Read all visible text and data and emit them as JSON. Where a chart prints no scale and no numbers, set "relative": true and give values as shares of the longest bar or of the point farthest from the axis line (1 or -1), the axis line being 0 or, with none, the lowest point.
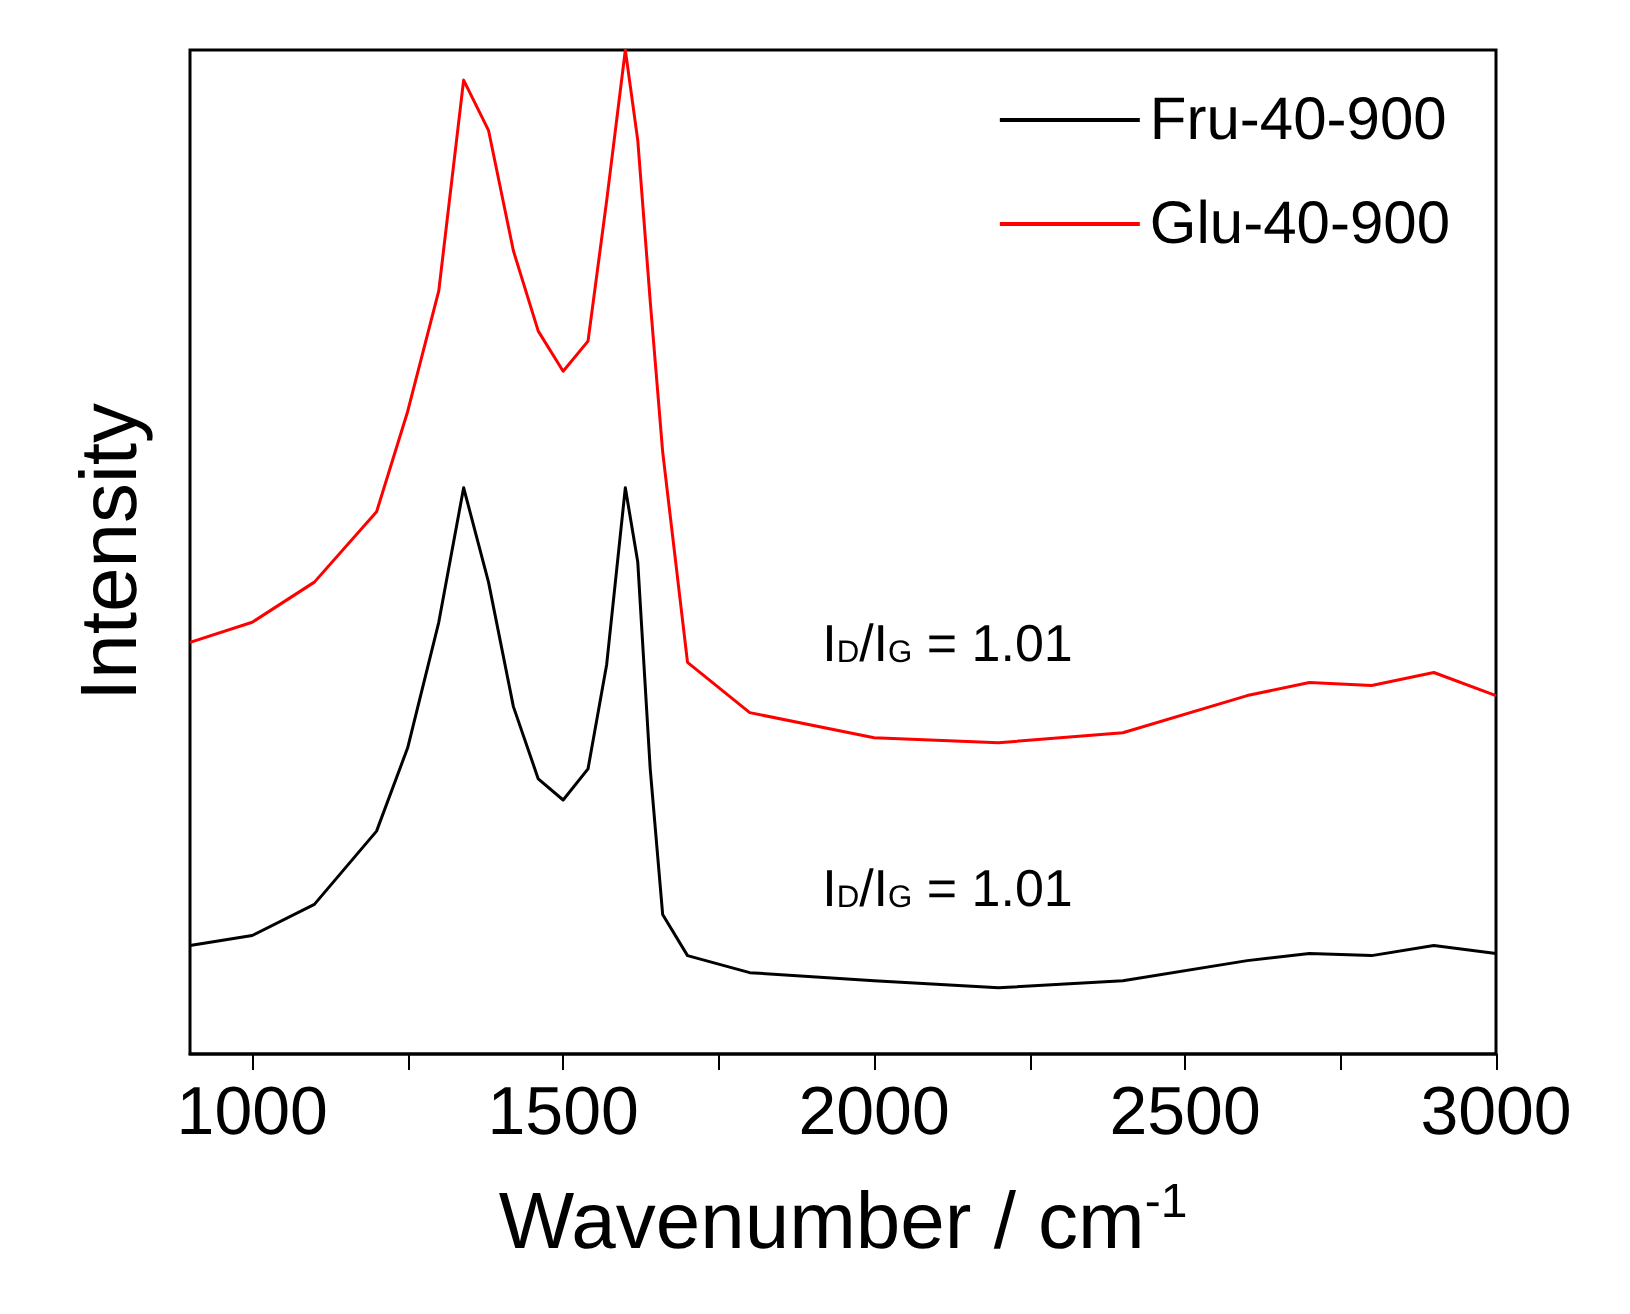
{
  "chart_data": {
    "type": "line",
    "relative": true,
    "xlabel": "Wavenumber / cm$^{-1}$",
    "ylabel": "Intensity",
    "xlim": [
      900,
      3000
    ],
    "xticks": [
      1000,
      {
        "value": 1250,
        "label": null
      },
      1500,
      {
        "value": 1750,
        "label": null
      },
      2000,
      {
        "value": 2250,
        "label": null
      },
      2500,
      {
        "value": 2750,
        "label": null
      },
      3000
    ],
    "x": [
      900,
      1000,
      1100,
      1200,
      1250,
      1300,
      1340,
      1380,
      1420,
      1460,
      1500,
      1540,
      1570,
      1600,
      1620,
      1640,
      1660,
      1700,
      1800,
      2000,
      2200,
      2400,
      2600,
      2700,
      2800,
      2900,
      3000
    ],
    "series": [
      {
        "name": "Fru-40-900",
        "color": "#000000",
        "values": [
          0.108,
          0.118,
          0.149,
          0.222,
          0.305,
          0.43,
          0.564,
          0.47,
          0.346,
          0.274,
          0.253,
          0.284,
          0.388,
          0.564,
          0.49,
          0.284,
          0.139,
          0.098,
          0.081,
          0.073,
          0.066,
          0.073,
          0.093,
          0.1,
          0.098,
          0.108,
          0.1
        ]
      },
      {
        "name": "Glu-40-900",
        "color": "#ff0000",
        "values": [
          0.41,
          0.43,
          0.47,
          0.54,
          0.64,
          0.76,
          0.97,
          0.92,
          0.8,
          0.72,
          0.68,
          0.71,
          0.85,
          1.0,
          0.91,
          0.75,
          0.6,
          0.39,
          0.34,
          0.315,
          0.31,
          0.32,
          0.357,
          0.37,
          0.367,
          0.38,
          0.357
        ]
      }
    ],
    "annotations": [
      "I$_{D}$/I$_{G}$ = 1.01",
      "I$_{D}$/I$_{G}$ = 1.01"
    ],
    "legend": "top right"
  }
}
